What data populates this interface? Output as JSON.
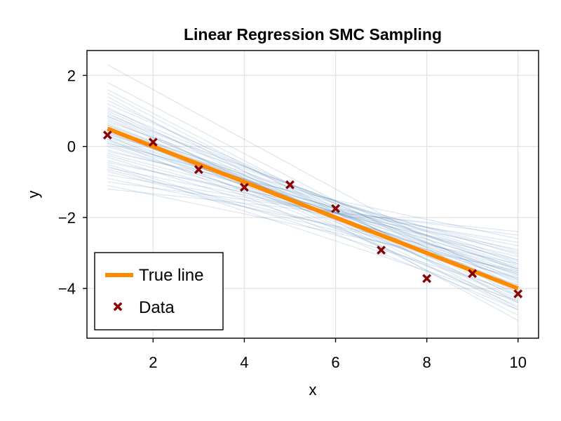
{
  "chart_data": {
    "type": "line",
    "title": "Linear Regression SMC Sampling",
    "xlabel": "x",
    "ylabel": "y",
    "xlim": [
      0.55,
      10.45
    ],
    "ylim": [
      -5.4,
      2.7
    ],
    "xticks": [
      2,
      4,
      6,
      8,
      10
    ],
    "yticks": [
      2,
      0,
      -2,
      -4
    ],
    "xtick_labels": [
      "2",
      "4",
      "6",
      "8",
      "10"
    ],
    "ytick_labels": [
      "2",
      "0",
      "−2",
      "−4"
    ],
    "grid": true,
    "legend_position": "bottom-left",
    "colors": {
      "true_line": "#ff8a00",
      "data_marker": "#8b0000",
      "sample_lines": "#4a7fb5",
      "grid": "#e5e5e5"
    },
    "true_line": {
      "name": "True line",
      "x": [
        1,
        10
      ],
      "y": [
        0.5,
        -4.0
      ]
    },
    "data": {
      "name": "Data",
      "x": [
        1,
        2,
        3,
        4,
        5,
        6,
        7,
        8,
        9,
        10
      ],
      "y": [
        0.32,
        0.12,
        -0.65,
        -1.15,
        -1.08,
        -1.75,
        -2.92,
        -3.72,
        -3.58,
        -4.15
      ]
    },
    "samples": {
      "x": [
        1,
        10
      ],
      "lines": [
        [
          0.5,
          -3.8
        ],
        [
          0.3,
          -3.6
        ],
        [
          0.1,
          -3.4
        ],
        [
          -0.2,
          -3.2
        ],
        [
          0.8,
          -4.3
        ],
        [
          1.1,
          -4.6
        ],
        [
          1.4,
          -4.9
        ],
        [
          0.6,
          -4.0
        ],
        [
          0.4,
          -3.9
        ],
        [
          0.2,
          -3.7
        ],
        [
          -0.4,
          -3.1
        ],
        [
          -0.6,
          -2.9
        ],
        [
          -0.8,
          -2.7
        ],
        [
          -1.0,
          -2.5
        ],
        [
          -1.2,
          -2.4
        ],
        [
          2.3,
          -4.0
        ],
        [
          1.8,
          -4.2
        ],
        [
          1.6,
          -4.4
        ],
        [
          0.9,
          -3.5
        ],
        [
          0.7,
          -3.3
        ],
        [
          0.0,
          -3.6
        ],
        [
          -0.3,
          -3.9
        ],
        [
          -0.5,
          -4.1
        ],
        [
          -0.7,
          -3.7
        ],
        [
          0.45,
          -4.2
        ],
        [
          0.55,
          -4.5
        ],
        [
          0.35,
          -3.45
        ],
        [
          0.15,
          -3.25
        ],
        [
          1.0,
          -4.1
        ],
        [
          1.2,
          -3.85
        ],
        [
          -0.1,
          -3.0
        ],
        [
          0.25,
          -3.55
        ],
        [
          0.65,
          -4.05
        ],
        [
          0.85,
          -4.35
        ],
        [
          -0.9,
          -3.3
        ],
        [
          -0.65,
          -3.55
        ],
        [
          0.05,
          -3.75
        ],
        [
          0.95,
          -4.75
        ],
        [
          1.3,
          -4.25
        ],
        [
          -1.1,
          -3.5
        ],
        [
          0.4,
          -3.35
        ],
        [
          0.6,
          -3.65
        ],
        [
          0.3,
          -4.4
        ],
        [
          -0.25,
          -3.45
        ],
        [
          0.75,
          -3.95
        ],
        [
          1.5,
          -4.55
        ],
        [
          -0.45,
          -2.8
        ],
        [
          0.2,
          -4.6
        ],
        [
          0.5,
          -3.2
        ],
        [
          -0.15,
          -2.6
        ],
        [
          1.05,
          -3.75
        ],
        [
          0.35,
          -3.05
        ],
        [
          -0.55,
          -4.35
        ],
        [
          0.85,
          -3.45
        ],
        [
          0.1,
          -2.95
        ]
      ]
    }
  },
  "legend": {
    "items": [
      {
        "label": "True line"
      },
      {
        "label": "Data"
      }
    ]
  }
}
